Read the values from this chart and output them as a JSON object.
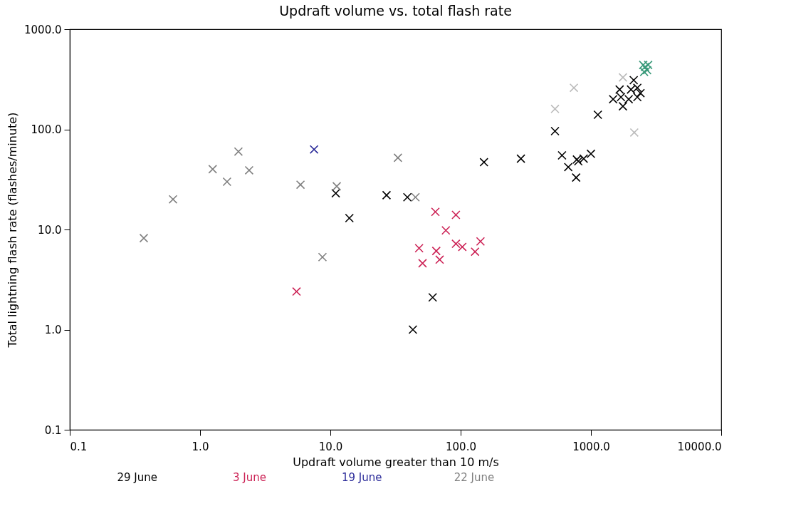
{
  "chart_data": {
    "type": "scatter",
    "title": "Updraft volume vs. total flash rate",
    "xlabel": "Updraft volume greater than 10 m/s",
    "ylabel": "Total lightning flash rate (flashes/minute)",
    "log": "xy",
    "grid": false,
    "marker": "cross",
    "legend": "bottom",
    "xlim": [
      0.1,
      10000
    ],
    "xticks": [
      0.1,
      {
        "value": 1,
        "label": "1.0"
      },
      {
        "value": 10,
        "label": "10.0"
      },
      {
        "value": 100,
        "label": "100.0"
      },
      {
        "value": 1000,
        "label": "1000.0"
      },
      {
        "value": 10000,
        "label": "10000.0"
      }
    ],
    "ylim": [
      0.1,
      1000
    ],
    "yticks": [
      0.1,
      {
        "value": 1,
        "label": "1.0"
      },
      {
        "value": 10,
        "label": "10.0"
      },
      {
        "value": 100,
        "label": "100.0"
      },
      {
        "value": 1000,
        "label": "1000.0"
      }
    ],
    "series": [
      {
        "name": "29 June",
        "color": "#000000",
        "x": [
          11,
          14,
          27,
          39,
          61,
          43,
          151,
          290,
          530,
          1130,
          600,
          780,
          800,
          880,
          1000,
          670,
          770,
          1480,
          1660,
          1760,
          1700,
          1950,
          2130,
          2270,
          2400,
          2270,
          2030
        ],
        "values": [
          23,
          13,
          22,
          21,
          2.1,
          1.0,
          47,
          51,
          96,
          140,
          55,
          50,
          48,
          51,
          57,
          42,
          33,
          200,
          250,
          170,
          210,
          200,
          310,
          260,
          230,
          210,
          250
        ]
      },
      {
        "name": "3 June",
        "color": "#cc2255",
        "x": [
          5.5,
          64,
          92,
          77,
          48,
          65,
          51,
          69,
          92,
          103,
          142,
          129
        ],
        "values": [
          2.4,
          15,
          14,
          9.8,
          6.5,
          6.1,
          4.6,
          5.0,
          7.2,
          6.7,
          7.6,
          6.0
        ]
      },
      {
        "name": "19 June",
        "color": "#2a2a99",
        "x": [
          7.5
        ],
        "values": [
          63
        ]
      },
      {
        "name": "22 June",
        "color": "#808080",
        "x": [
          0.37,
          0.62,
          1.25,
          1.97,
          1.61,
          2.38,
          5.9,
          11.2,
          8.7,
          33,
          45
        ],
        "values": [
          8.2,
          20,
          40,
          60,
          30,
          39,
          28,
          27,
          5.3,
          52,
          21
        ]
      },
      {
        "color": "#bbbbbb",
        "x": [
          740,
          530,
          2150,
          1760
        ],
        "values": [
          260,
          160,
          93,
          330
        ]
      },
      {
        "color": "#3a9a7a",
        "x": [
          2600,
          2520,
          2700,
          2560,
          2750
        ],
        "values": [
          420,
          440,
          390,
          375,
          440
        ]
      }
    ]
  }
}
